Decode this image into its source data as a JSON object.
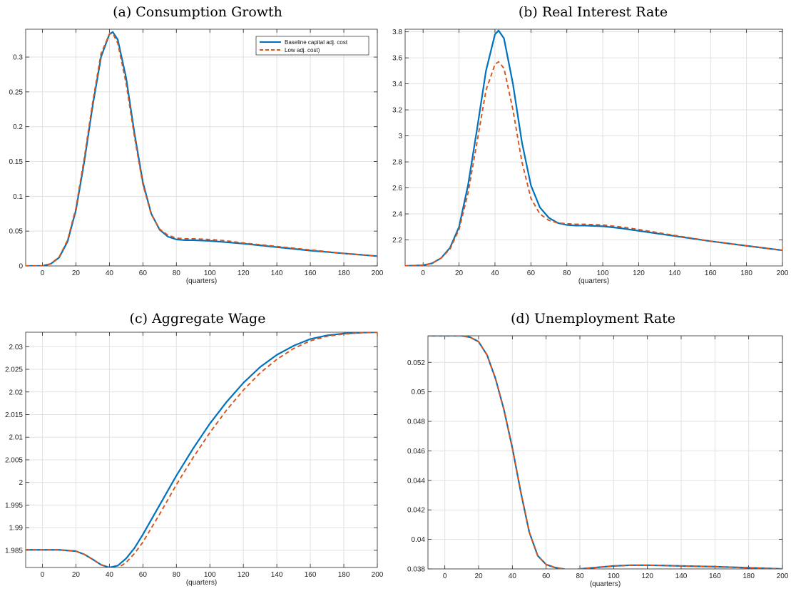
{
  "chart_data": [
    {
      "type": "line",
      "title": "(a) Consumption Growth",
      "xlabel": "(quarters)",
      "ylabel": "",
      "xlim": [
        -10,
        200
      ],
      "ylim": [
        0,
        0.34
      ],
      "xticks": [
        0,
        20,
        40,
        60,
        80,
        100,
        120,
        140,
        160,
        180,
        200
      ],
      "yticks": [
        0,
        0.05,
        0.1,
        0.15,
        0.2,
        0.25,
        0.3
      ],
      "ytick_labels": [
        "0",
        "0.05",
        "0.1",
        "0.15",
        "0.2",
        "0.25",
        "0.3"
      ],
      "grid": true,
      "legend": {
        "location": "top-right",
        "entries": [
          "Baseline capital adj. cost",
          "Low adj. cost)"
        ]
      },
      "series": [
        {
          "name": "Baseline capital adj. cost",
          "color": "#0072BD",
          "style": "solid",
          "x": [
            -10,
            0,
            5,
            10,
            15,
            20,
            25,
            30,
            35,
            40,
            42,
            45,
            50,
            55,
            60,
            65,
            70,
            75,
            80,
            85,
            90,
            100,
            110,
            120,
            140,
            160,
            180,
            200
          ],
          "y": [
            0,
            0,
            0.003,
            0.012,
            0.035,
            0.08,
            0.15,
            0.23,
            0.3,
            0.333,
            0.336,
            0.325,
            0.27,
            0.19,
            0.12,
            0.075,
            0.052,
            0.042,
            0.038,
            0.037,
            0.037,
            0.036,
            0.034,
            0.032,
            0.027,
            0.022,
            0.018,
            0.014
          ]
        },
        {
          "name": "Low adj. cost)",
          "color": "#D95319",
          "style": "dashed",
          "x": [
            -10,
            0,
            5,
            10,
            15,
            20,
            25,
            30,
            35,
            40,
            42,
            45,
            50,
            55,
            60,
            65,
            70,
            75,
            80,
            85,
            90,
            100,
            110,
            120,
            140,
            160,
            180,
            200
          ],
          "y": [
            0,
            0,
            0.003,
            0.013,
            0.037,
            0.083,
            0.155,
            0.235,
            0.305,
            0.333,
            0.334,
            0.32,
            0.262,
            0.185,
            0.117,
            0.074,
            0.053,
            0.044,
            0.04,
            0.039,
            0.039,
            0.038,
            0.036,
            0.033,
            0.028,
            0.023,
            0.018,
            0.014
          ]
        }
      ]
    },
    {
      "type": "line",
      "title": "(b) Real Interest Rate",
      "xlabel": "(quarters)",
      "ylabel": "",
      "xlim": [
        -10,
        200
      ],
      "ylim": [
        2.0,
        3.82
      ],
      "xticks": [
        0,
        20,
        40,
        60,
        80,
        100,
        120,
        140,
        160,
        180,
        200
      ],
      "yticks": [
        2.2,
        2.4,
        2.6,
        2.8,
        3.0,
        3.2,
        3.4,
        3.6,
        3.8
      ],
      "ytick_labels": [
        "2.2",
        "2.4",
        "2.6",
        "2.8",
        "3",
        "3.2",
        "3.4",
        "3.6",
        "3.8"
      ],
      "grid": true,
      "series": [
        {
          "name": "Baseline capital adj. cost",
          "color": "#0072BD",
          "style": "solid",
          "x": [
            -10,
            0,
            5,
            10,
            15,
            20,
            25,
            30,
            35,
            40,
            42,
            45,
            50,
            55,
            60,
            65,
            70,
            75,
            80,
            85,
            90,
            100,
            110,
            120,
            140,
            160,
            180,
            200
          ],
          "y": [
            2.0,
            2.005,
            2.02,
            2.06,
            2.14,
            2.3,
            2.62,
            3.05,
            3.5,
            3.78,
            3.81,
            3.75,
            3.4,
            2.95,
            2.62,
            2.45,
            2.37,
            2.33,
            2.315,
            2.31,
            2.31,
            2.305,
            2.29,
            2.27,
            2.23,
            2.19,
            2.155,
            2.12
          ]
        },
        {
          "name": "Low adj. cost)",
          "color": "#D95319",
          "style": "dashed",
          "x": [
            -10,
            0,
            5,
            10,
            15,
            20,
            25,
            30,
            35,
            40,
            42,
            45,
            50,
            55,
            60,
            65,
            70,
            75,
            80,
            85,
            90,
            100,
            110,
            120,
            140,
            160,
            180,
            200
          ],
          "y": [
            2.0,
            2.005,
            2.02,
            2.06,
            2.13,
            2.28,
            2.56,
            2.95,
            3.35,
            3.55,
            3.57,
            3.52,
            3.2,
            2.8,
            2.52,
            2.4,
            2.35,
            2.33,
            2.325,
            2.32,
            2.32,
            2.315,
            2.3,
            2.28,
            2.235,
            2.19,
            2.155,
            2.12
          ]
        }
      ]
    },
    {
      "type": "line",
      "title": "(c) Aggregate Wage",
      "xlabel": "(quarters)",
      "ylabel": "",
      "xlim": [
        -10,
        200
      ],
      "ylim": [
        1.9812,
        2.0332
      ],
      "xticks": [
        0,
        20,
        40,
        60,
        80,
        100,
        120,
        140,
        160,
        180,
        200
      ],
      "yticks": [
        1.985,
        1.99,
        1.995,
        2.0,
        2.005,
        2.01,
        2.015,
        2.02,
        2.025,
        2.03
      ],
      "ytick_labels": [
        "1.985",
        "1.99",
        "1.995",
        "2",
        "2.005",
        "2.01",
        "2.015",
        "2.02",
        "2.025",
        "2.03"
      ],
      "grid": true,
      "series": [
        {
          "name": "Baseline capital adj. cost",
          "color": "#0072BD",
          "style": "solid",
          "x": [
            -10,
            0,
            10,
            20,
            25,
            30,
            35,
            40,
            45,
            50,
            55,
            60,
            70,
            80,
            90,
            100,
            110,
            120,
            130,
            140,
            150,
            160,
            170,
            180,
            190,
            200
          ],
          "y": [
            1.9851,
            1.9851,
            1.9851,
            1.9848,
            1.9841,
            1.983,
            1.9818,
            1.9812,
            1.9816,
            1.9832,
            1.9855,
            1.9885,
            1.995,
            2.0015,
            2.0075,
            2.013,
            2.0178,
            2.022,
            2.0255,
            2.0282,
            2.0302,
            2.0317,
            2.0325,
            2.0329,
            2.0331,
            2.0332
          ]
        },
        {
          "name": "Low adj. cost)",
          "color": "#D95319",
          "style": "dashed",
          "x": [
            -10,
            0,
            10,
            20,
            25,
            30,
            35,
            40,
            45,
            50,
            55,
            60,
            70,
            80,
            90,
            100,
            110,
            120,
            130,
            140,
            150,
            160,
            170,
            180,
            190,
            200
          ],
          "y": [
            1.9851,
            1.9851,
            1.9851,
            1.9848,
            1.9841,
            1.983,
            1.9818,
            1.9811,
            1.9811,
            1.9823,
            1.9843,
            1.9868,
            1.993,
            1.9995,
            2.0055,
            2.011,
            2.016,
            2.0204,
            2.0242,
            2.0272,
            2.0296,
            2.0313,
            2.0323,
            2.0328,
            2.0331,
            2.0332
          ]
        }
      ]
    },
    {
      "type": "line",
      "title": "(d) Unemployment Rate",
      "xlabel": "(quarters)",
      "ylabel": "",
      "xlim": [
        -10,
        200
      ],
      "ylim": [
        0.038,
        0.0538
      ],
      "xticks": [
        0,
        20,
        40,
        60,
        80,
        100,
        120,
        140,
        160,
        180,
        200
      ],
      "yticks": [
        0.038,
        0.04,
        0.042,
        0.044,
        0.046,
        0.048,
        0.05,
        0.052
      ],
      "ytick_labels": [
        "0.038",
        "0.04",
        "0.042",
        "0.044",
        "0.046",
        "0.048",
        "0.05",
        "0.052"
      ],
      "grid": true,
      "series": [
        {
          "name": "Baseline capital adj. cost",
          "color": "#0072BD",
          "style": "solid",
          "x": [
            -10,
            0,
            10,
            15,
            20,
            25,
            30,
            35,
            40,
            45,
            50,
            55,
            60,
            65,
            70,
            75,
            80,
            90,
            100,
            110,
            120,
            130,
            140,
            160,
            180,
            200
          ],
          "y": [
            0.0538,
            0.0538,
            0.0538,
            0.0537,
            0.0534,
            0.0525,
            0.0509,
            0.0488,
            0.0462,
            0.0432,
            0.0405,
            0.0389,
            0.0383,
            0.0381,
            0.038,
            0.0379,
            0.038,
            0.0381,
            0.0382,
            0.03825,
            0.03825,
            0.03823,
            0.0382,
            0.03815,
            0.03808,
            0.038
          ]
        },
        {
          "name": "Low adj. cost)",
          "color": "#D95319",
          "style": "dashed",
          "x": [
            -10,
            0,
            10,
            15,
            20,
            25,
            30,
            35,
            40,
            45,
            50,
            55,
            60,
            65,
            70,
            75,
            80,
            90,
            100,
            110,
            120,
            130,
            140,
            160,
            180,
            200
          ],
          "y": [
            0.0538,
            0.0538,
            0.0538,
            0.0537,
            0.0534,
            0.0525,
            0.0509,
            0.0488,
            0.0462,
            0.0432,
            0.0405,
            0.0389,
            0.0383,
            0.0381,
            0.038,
            0.0379,
            0.038,
            0.0381,
            0.0382,
            0.03825,
            0.03825,
            0.03823,
            0.0382,
            0.03815,
            0.03808,
            0.038
          ]
        }
      ]
    }
  ]
}
